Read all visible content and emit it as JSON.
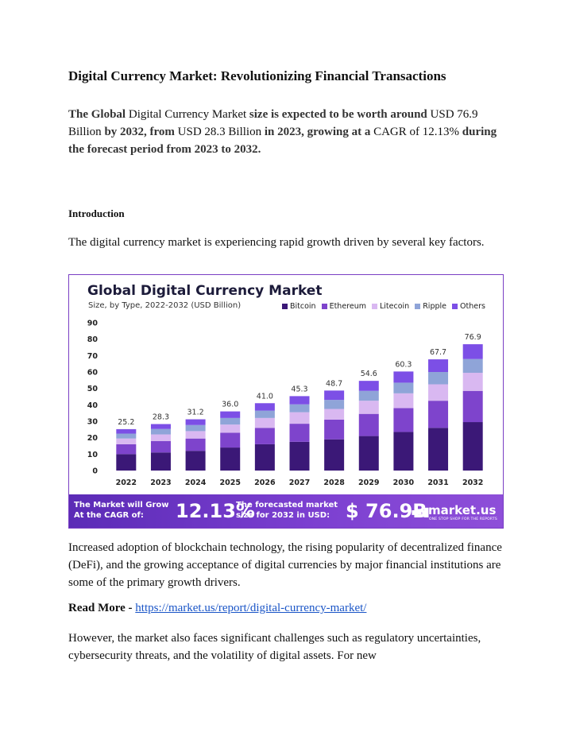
{
  "document": {
    "title": "Digital Currency Market: Revolutionizing Financial Transactions",
    "summary": {
      "p1": "The Global",
      "p2": " Digital Currency Market ",
      "p3": "size is expected to be worth around",
      "p4": " USD 76.9 Billion ",
      "p5": "by 2032, from",
      "p6": " USD 28.3 Billion ",
      "p7": "in 2023, growing at a",
      "p8": " CAGR of 12.13% ",
      "p9": "during the forecast period from 2023 to 2032."
    },
    "intro_heading": "Introduction",
    "intro_text": "The digital currency market is experiencing rapid growth driven by several key factors.",
    "drivers_text": "Increased adoption of blockchain technology, the rising popularity of decentralized finance (DeFi), and the growing acceptance of digital currencies by major financial institutions are some of the primary growth drivers.",
    "read_more_label": "Read More - ",
    "read_more_link": "https://market.us/report/digital-currency-market/",
    "challenges_text": " However, the market also faces significant challenges such as regulatory uncertainties, cybersecurity threats, and the volatility of digital assets. For new"
  },
  "infographic": {
    "title": "Global Digital Currency Market",
    "subtitle": "Size, by Type, 2022-2032 (USD Billion)",
    "banner": {
      "cagr_label": "The Market will Grow At the CAGR of:",
      "cagr_value": "12.13%",
      "forecast_label": "The forecasted market size for 2032 in USD:",
      "forecast_value": "$ 76.9B",
      "brand": "market.us",
      "brand_tagline": "ONE STOP SHOP FOR THE REPORTS"
    }
  },
  "colors": {
    "Bitcoin": "#3b1877",
    "Ethereum": "#7e44cc",
    "Litecoin": "#d9b8f1",
    "Ripple": "#8fa4d8",
    "Others": "#7c4fe6"
  },
  "chart_data": {
    "type": "bar",
    "stacked": true,
    "title": "Global Digital Currency Market",
    "subtitle": "Size, by Type, 2022-2032 (USD Billion)",
    "categories": [
      "2022",
      "2023",
      "2024",
      "2025",
      "2026",
      "2027",
      "2028",
      "2029",
      "2030",
      "2031",
      "2032"
    ],
    "totals": [
      25.2,
      28.3,
      31.2,
      36.0,
      41.0,
      45.3,
      48.7,
      54.6,
      60.3,
      67.7,
      76.9
    ],
    "series": [
      {
        "name": "Bitcoin",
        "values": [
          10.0,
          11.0,
          12.0,
          14.0,
          16.0,
          17.5,
          19.0,
          21.0,
          23.5,
          26.0,
          29.5
        ]
      },
      {
        "name": "Ethereum",
        "values": [
          6.0,
          7.0,
          7.5,
          9.0,
          10.0,
          11.0,
          12.0,
          13.5,
          14.5,
          16.5,
          19.0
        ]
      },
      {
        "name": "Litecoin",
        "values": [
          3.5,
          4.0,
          4.5,
          5.0,
          6.0,
          7.0,
          6.5,
          8.0,
          9.0,
          10.0,
          11.0
        ]
      },
      {
        "name": "Ripple",
        "values": [
          3.0,
          3.3,
          3.7,
          4.0,
          4.5,
          4.8,
          5.5,
          6.0,
          6.5,
          7.5,
          8.4
        ]
      },
      {
        "name": "Others",
        "values": [
          2.7,
          3.0,
          3.5,
          4.0,
          4.5,
          5.0,
          5.7,
          6.1,
          6.8,
          7.7,
          9.0
        ]
      }
    ],
    "yticks": [
      0,
      10,
      20,
      30,
      40,
      50,
      60,
      70,
      80,
      90
    ],
    "ylim": [
      0,
      90
    ],
    "grid": false,
    "legend": "top-right"
  }
}
